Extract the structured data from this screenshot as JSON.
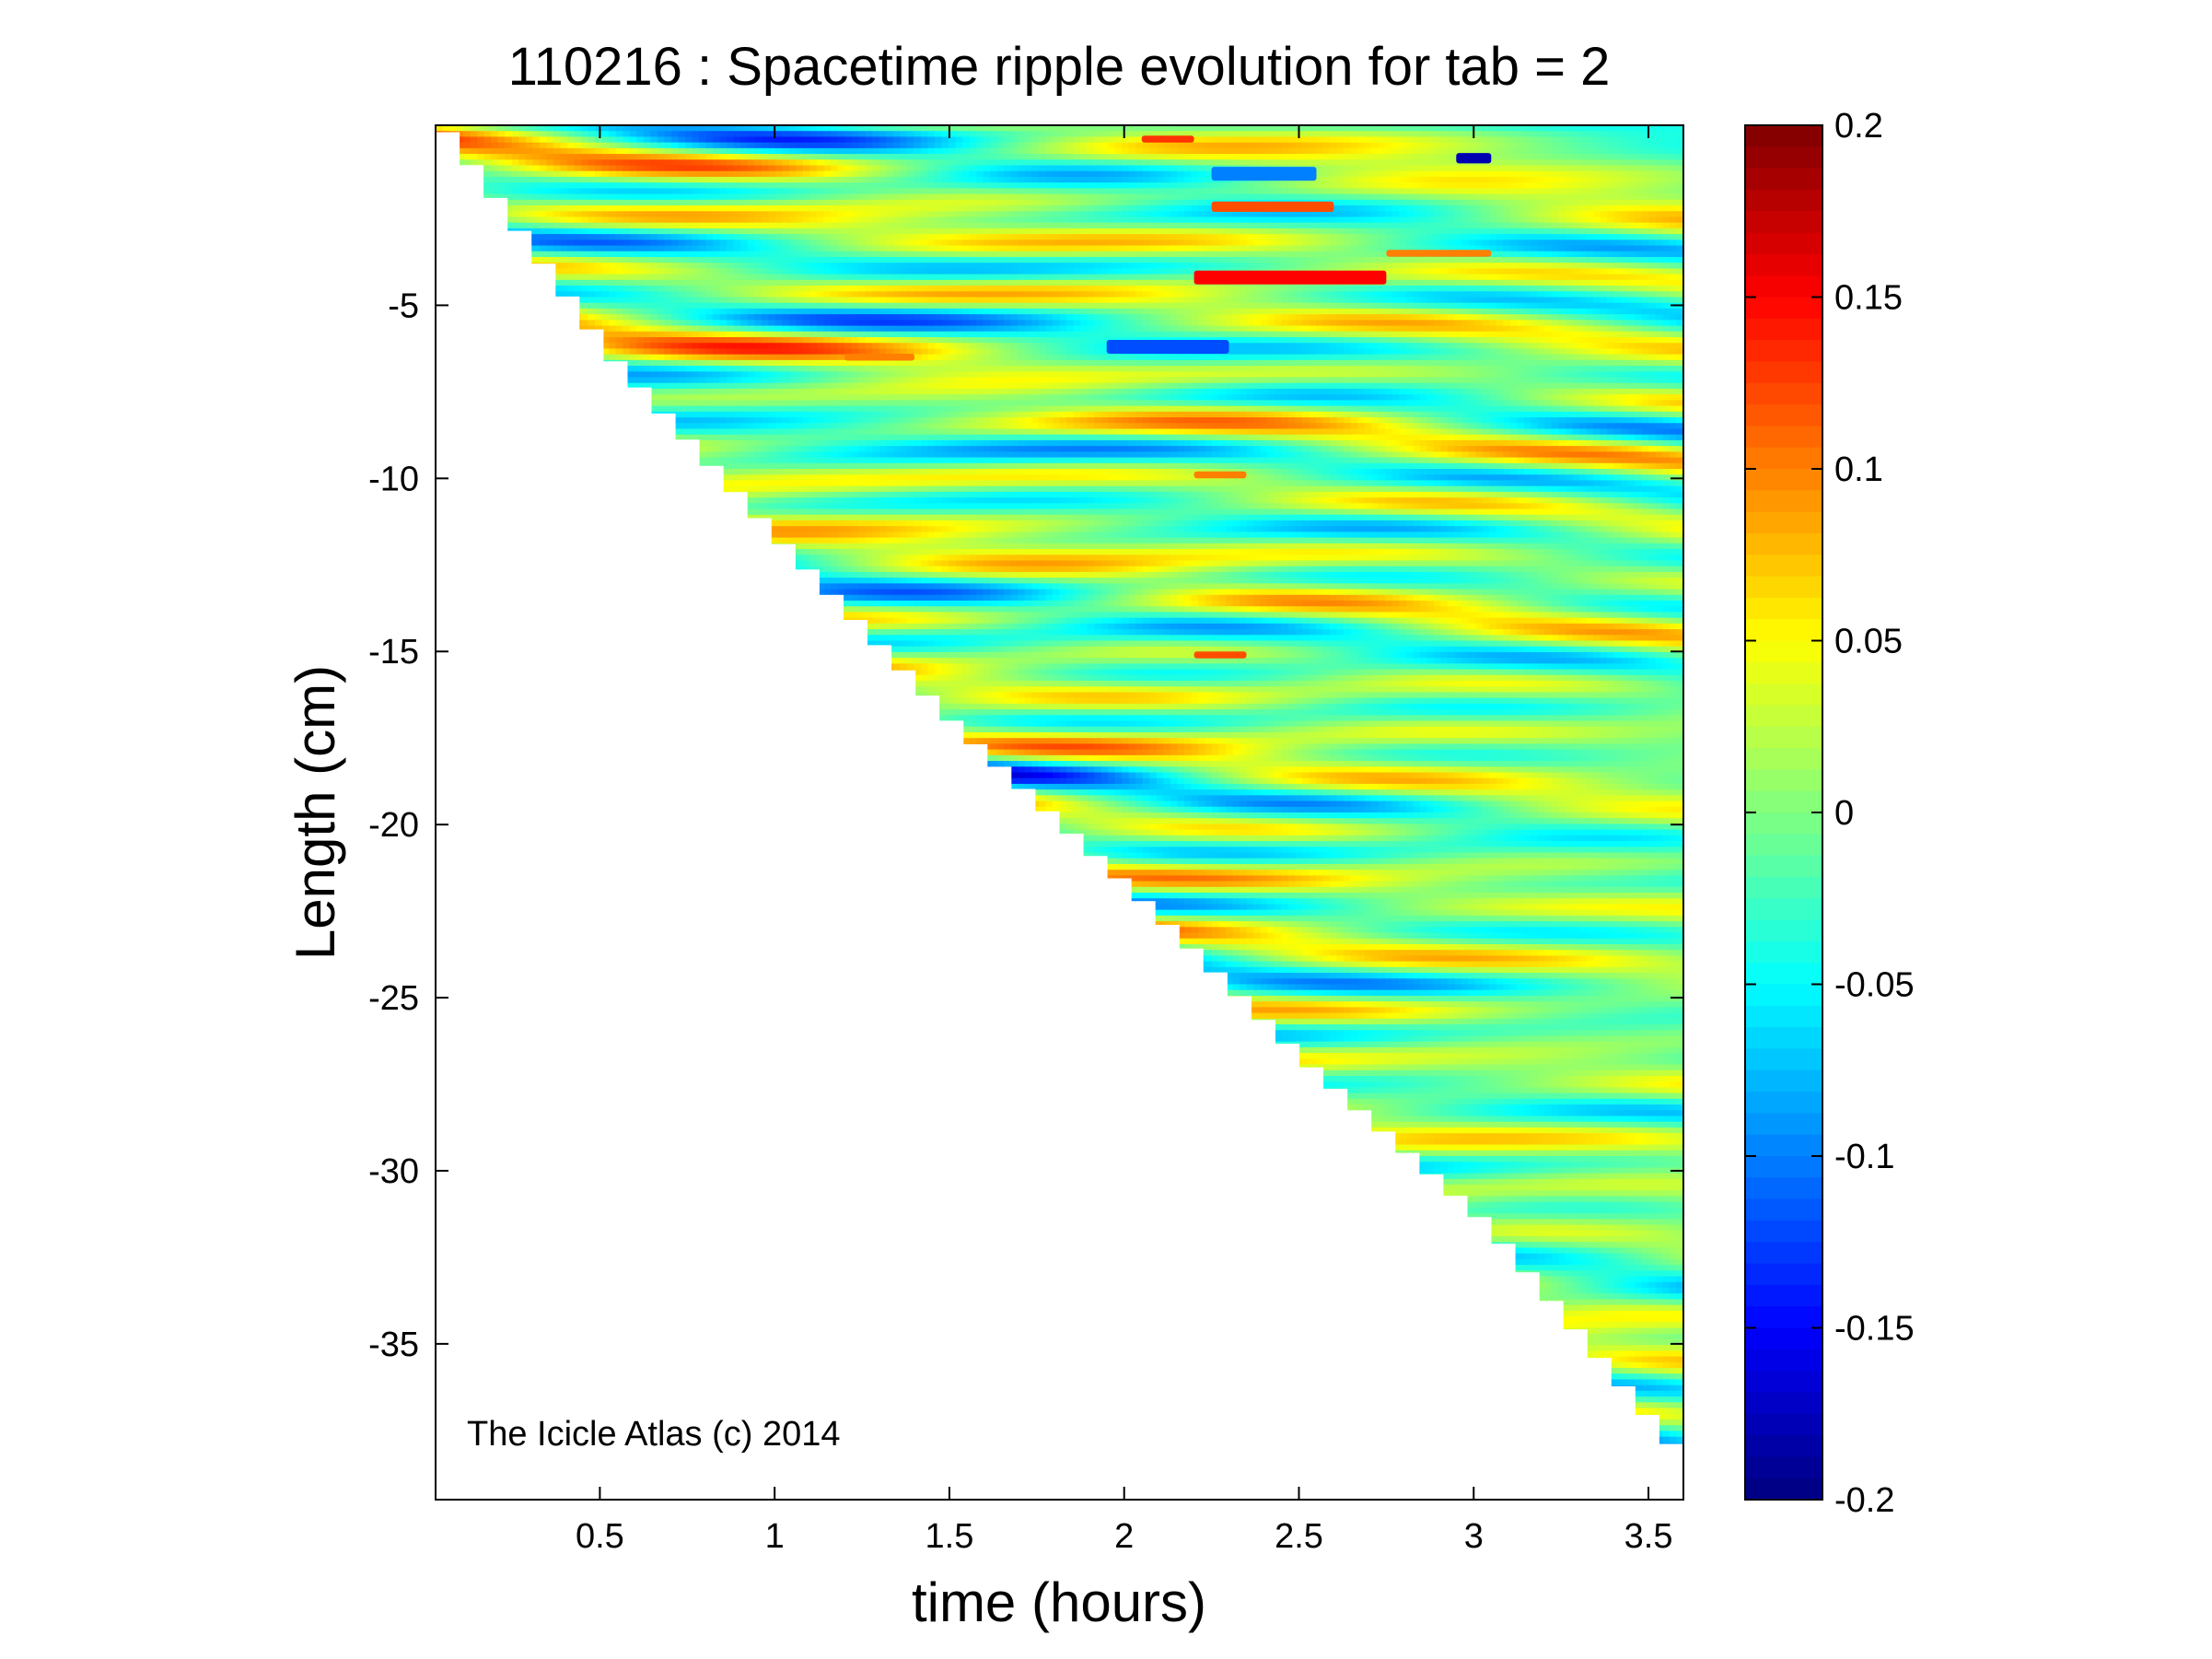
{
  "chart_data": {
    "type": "heatmap",
    "title": "110216 : Spacetime ripple evolution for tab = 2",
    "xlabel": "time (hours)",
    "ylabel": "Length (cm)",
    "xlim": [
      0.03,
      3.6
    ],
    "ylim": [
      -39.5,
      0.2
    ],
    "xticks": [
      0.5,
      1,
      1.5,
      2,
      2.5,
      3,
      3.5
    ],
    "xtick_labels": [
      "0.5",
      "1",
      "1.5",
      "2",
      "2.5",
      "3",
      "3.5"
    ],
    "yticks": [
      -5,
      -10,
      -15,
      -20,
      -25,
      -30,
      -35
    ],
    "ytick_labels": [
      "-5",
      "-10",
      "-15",
      "-20",
      "-25",
      "-30",
      "-35"
    ],
    "colorbar": {
      "colormap": "jet",
      "min": -0.2,
      "max": 0.2,
      "ticks": [
        0.2,
        0.15,
        0.1,
        0.05,
        0,
        -0.05,
        -0.1,
        -0.15,
        -0.2
      ],
      "tick_labels": [
        "0.2",
        "0.15",
        "0.1",
        "0.05",
        "0",
        "-0.05",
        "-0.1",
        "-0.15",
        "-0.2"
      ]
    },
    "data_extent": {
      "description": "Data exists only above a stair-step boundary running from the top-left to the bottom-right corner; the region below is empty (white).",
      "boundary": [
        {
          "time": 0.03,
          "length": 0.0
        },
        {
          "time": 0.5,
          "length": -6.5
        },
        {
          "time": 1.0,
          "length": -12.0
        },
        {
          "time": 1.5,
          "length": -17.3
        },
        {
          "time": 2.0,
          "length": -22.0
        },
        {
          "time": 2.5,
          "length": -27.0
        },
        {
          "time": 3.0,
          "length": -31.5
        },
        {
          "time": 3.5,
          "length": -37.5
        },
        {
          "time": 3.58,
          "length": -38.5
        }
      ]
    },
    "value_summary": "Mostly near 0 (green) with banded ripples of about ±0.05 (yellow/cyan) drifting slowly with time; isolated extremes reach about ±0.15 to ±0.2 near the top for times 2 to 3 hours.",
    "features": [
      {
        "time": [
          2.2,
          2.75
        ],
        "length": [
          -4.0,
          -4.4
        ],
        "value": 0.15
      },
      {
        "time": [
          2.95,
          3.05
        ],
        "length": [
          -0.6,
          -0.9
        ],
        "value": -0.18
      },
      {
        "time": [
          1.95,
          2.3
        ],
        "length": [
          -6.0,
          -6.4
        ],
        "value": -0.12
      },
      {
        "time": [
          2.2,
          2.35
        ],
        "length": [
          -15.0,
          -15.2
        ],
        "value": 0.12
      },
      {
        "time": [
          2.05,
          2.2
        ],
        "length": [
          -0.1,
          -0.3
        ],
        "value": 0.13
      },
      {
        "time": [
          2.25,
          2.55
        ],
        "length": [
          -1.0,
          -1.4
        ],
        "value": -0.1
      },
      {
        "time": [
          2.25,
          2.6
        ],
        "length": [
          -2.0,
          -2.3
        ],
        "value": 0.12
      },
      {
        "time": [
          2.75,
          3.05
        ],
        "length": [
          -3.4,
          -3.6
        ],
        "value": 0.1
      },
      {
        "time": [
          2.2,
          2.35
        ],
        "length": [
          -9.8,
          -10.0
        ],
        "value": 0.1
      },
      {
        "time": [
          1.2,
          1.4
        ],
        "length": [
          -6.4,
          -6.6
        ],
        "value": 0.1
      }
    ],
    "annotation": "The Icicle Atlas (c) 2014"
  }
}
